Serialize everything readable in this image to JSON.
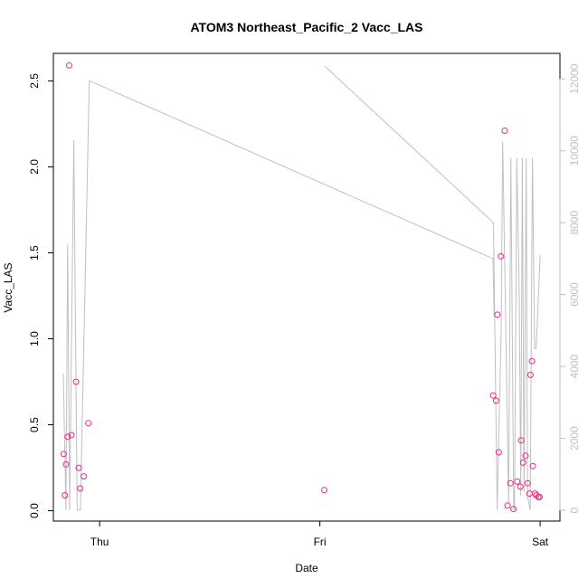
{
  "chart_data": {
    "type": "scatter",
    "title": "ATOM3 Northeast_Pacific_2 Vacc_LAS",
    "xlabel": "Date",
    "ylabel": "Vacc_LAS",
    "x_ticks": [
      {
        "x": 1.0,
        "label": "Thu"
      },
      {
        "x": 2.0,
        "label": "Fri"
      },
      {
        "x": 3.0,
        "label": "Sat"
      }
    ],
    "xlim": [
      0.79,
      3.09
    ],
    "ylim": [
      -0.06,
      2.66
    ],
    "y_ticks": [
      0.0,
      0.5,
      1.0,
      1.5,
      2.0,
      2.5
    ],
    "y_tick_labels": [
      "0.0",
      "0.5",
      "1.0",
      "1.5",
      "2.0",
      "2.5"
    ],
    "y2lim": [
      -300,
      12710
    ],
    "y2_ticks": [
      0,
      2000,
      4000,
      6000,
      8000,
      10000,
      12000
    ],
    "y2_tick_labels": [
      "0",
      "2000",
      "4000",
      "6000",
      "8000",
      "10000",
      "12000"
    ],
    "grid": false,
    "colors": {
      "points": "#e7298a",
      "line": "#c0c0c0",
      "axes": "#000000",
      "right_axis": "#c0c0c0"
    },
    "series": [
      {
        "type": "scatter",
        "axis": "left",
        "x": [
          0.837,
          0.842,
          0.847,
          0.855,
          0.862,
          0.872,
          0.893,
          0.905,
          0.912,
          0.928,
          0.949,
          2.02,
          2.787,
          2.8,
          2.806,
          2.812,
          2.822,
          2.839,
          2.852,
          2.865,
          2.879,
          2.896,
          2.91,
          2.914,
          2.923,
          2.934,
          2.943,
          2.952,
          2.956,
          2.963,
          2.967,
          2.977,
          2.983,
          2.992,
          2.997
        ],
        "y": [
          0.33,
          0.09,
          0.27,
          0.43,
          2.59,
          0.44,
          0.75,
          0.25,
          0.13,
          0.2,
          0.51,
          0.12,
          0.67,
          0.64,
          1.14,
          0.34,
          1.48,
          2.21,
          0.03,
          0.16,
          0.01,
          0.17,
          0.14,
          0.41,
          0.28,
          0.32,
          0.16,
          0.1,
          0.79,
          0.87,
          0.26,
          0.1,
          0.09,
          0.08,
          0.08
        ]
      },
      {
        "type": "line",
        "axis": "right",
        "segments": [
          {
            "x": [
              0.835,
              0.847,
              0.855,
              0.864,
              0.883,
              0.898,
              0.913,
              0.953,
              2.786,
              2.791
            ],
            "y": [
              3800,
              10,
              7400,
              10,
              10300,
              10,
              10,
              11950,
              7000,
              5400
            ]
          },
          {
            "x": [
              2.023,
              2.788,
              2.805,
              2.823,
              2.83,
              2.857,
              2.867,
              2.88,
              2.884,
              2.894,
              2.905,
              2.912,
              2.919,
              2.927,
              2.937,
              2.943,
              2.955,
              2.965,
              2.975,
              2.982,
              3.0
            ],
            "y": [
              12350,
              8000,
              10,
              5000,
              10250,
              200,
              9800,
              10,
              10,
              9800,
              6000,
              400,
              9800,
              500,
              9800,
              400,
              10,
              9800,
              4500,
              4500,
              7100
            ]
          }
        ]
      }
    ]
  }
}
